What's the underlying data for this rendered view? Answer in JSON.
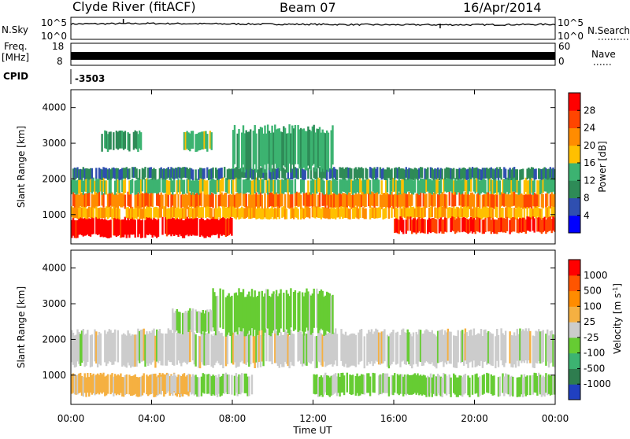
{
  "header": {
    "station": "Clyde River (fitACF)",
    "beam": "Beam 07",
    "date": "16/Apr/2014"
  },
  "nsky_panel": {
    "left_label": "N.Sky",
    "left_ticks": [
      "10^5",
      "10^0"
    ],
    "right_label": "N.Search",
    "right_ticks": [
      "10^5",
      "10^0"
    ]
  },
  "freq_panel": {
    "left_label_1": "Freq.",
    "left_label_2": "[MHz]",
    "left_ticks": [
      "18",
      "8"
    ],
    "right_label": "Nave",
    "right_ticks": [
      "60",
      "0"
    ]
  },
  "cpid": {
    "label": "CPID",
    "value": "-3503"
  },
  "power_panel": {
    "ylabel": "Slant Range [km]",
    "yticks": [
      "4000",
      "3000",
      "2000",
      "1000"
    ],
    "colorbar_label": "Power [dB]",
    "colorbar_ticks": [
      "28",
      "24",
      "20",
      "16",
      "12",
      "8",
      "4"
    ],
    "colors": [
      "#0000ff",
      "#2f4fb0",
      "#2e8b57",
      "#3cb371",
      "#ffc000",
      "#ff8c00",
      "#ff4500",
      "#ff0000"
    ]
  },
  "velocity_panel": {
    "ylabel": "Slant Range [km]",
    "yticks": [
      "4000",
      "3000",
      "2000",
      "1000"
    ],
    "colorbar_label": "Velocity [m s",
    "colorbar_sup": "-1",
    "colorbar_label_end": "]",
    "colorbar_ticks": [
      "1000",
      "500",
      "100",
      "25",
      "-25",
      "-100",
      "-500",
      "-1000"
    ],
    "colors": [
      "#2040c0",
      "#2e7d4f",
      "#3cb371",
      "#66cc33",
      "#cccccc",
      "#f5b041",
      "#ff8c00",
      "#ff5500",
      "#ff0000"
    ]
  },
  "time_axis": {
    "label": "Time UT",
    "ticks": [
      "00:00",
      "04:00",
      "08:00",
      "12:00",
      "16:00",
      "20:00",
      "00:00"
    ]
  },
  "chart_data": [
    {
      "type": "line",
      "title": "N.Sky",
      "x": [
        "00:00",
        "04:00",
        "08:00",
        "12:00",
        "16:00",
        "20:00",
        "00:00"
      ],
      "ylim": [
        "10^0",
        "10^5"
      ],
      "series": [
        {
          "values": [
            3.5,
            3.6,
            3.5,
            3.4,
            3.3,
            3.3,
            3.4
          ]
        }
      ]
    },
    {
      "type": "line",
      "title": "Freq.",
      "x": [
        "00:00",
        "04:00",
        "08:00",
        "12:00",
        "16:00",
        "20:00",
        "00:00"
      ],
      "ylim": [
        8,
        18
      ],
      "series": [
        {
          "values": [
            11,
            11,
            11,
            11,
            11,
            11,
            11
          ]
        }
      ]
    },
    {
      "type": "heatmap",
      "title": "Power [dB]",
      "xlabel": "Time UT",
      "ylabel": "Slant Range [km]",
      "xlim": [
        "00:00",
        "00:00"
      ],
      "ylim": [
        180,
        4500
      ],
      "clim": [
        0,
        30
      ],
      "bands": [
        {
          "t0": 0.0,
          "t1": 8.0,
          "r0": 400,
          "r1": 900,
          "value": 28
        },
        {
          "t0": 0.0,
          "t1": 24.0,
          "r0": 1200,
          "r1": 1600,
          "value": 22
        },
        {
          "t0": 0.0,
          "t1": 24.0,
          "r0": 900,
          "r1": 1200,
          "value": 18
        },
        {
          "t0": 0.0,
          "t1": 24.0,
          "r0": 1600,
          "r1": 2000,
          "value": 14
        },
        {
          "t0": 0.0,
          "t1": 24.0,
          "r0": 2000,
          "r1": 2300,
          "value": 8
        },
        {
          "t0": 16.0,
          "t1": 24.0,
          "r0": 500,
          "r1": 900,
          "value": 26
        },
        {
          "t0": 8.0,
          "t1": 13.0,
          "r0": 2300,
          "r1": 3400,
          "value": 12
        },
        {
          "t0": 1.5,
          "t1": 3.5,
          "r0": 2800,
          "r1": 3300,
          "value": 10
        },
        {
          "t0": 5.5,
          "t1": 7.0,
          "r0": 2800,
          "r1": 3300,
          "value": 14
        }
      ]
    },
    {
      "type": "heatmap",
      "title": "Velocity [m s^-1]",
      "xlabel": "Time UT",
      "ylabel": "Slant Range [km]",
      "xlim": [
        "00:00",
        "00:00"
      ],
      "ylim": [
        180,
        4500
      ],
      "clim": [
        -1000,
        1000
      ],
      "bands": [
        {
          "t0": 0.0,
          "t1": 6.0,
          "r0": 450,
          "r1": 1000,
          "value": 200
        },
        {
          "t0": 4.0,
          "t1": 6.0,
          "r0": 500,
          "r1": 1000,
          "value": 100
        },
        {
          "t0": 6.0,
          "t1": 9.0,
          "r0": 450,
          "r1": 1000,
          "value": -100
        },
        {
          "t0": 0.0,
          "t1": 24.0,
          "r0": 1300,
          "r1": 2200,
          "value": 0
        },
        {
          "t0": 12.0,
          "t1": 24.0,
          "r0": 450,
          "r1": 1000,
          "value": -150
        },
        {
          "t0": 7.0,
          "t1": 13.0,
          "r0": 2200,
          "r1": 3300,
          "value": -200
        },
        {
          "t0": 5.0,
          "t1": 7.0,
          "r0": 2200,
          "r1": 2800,
          "value": -150
        }
      ]
    }
  ]
}
